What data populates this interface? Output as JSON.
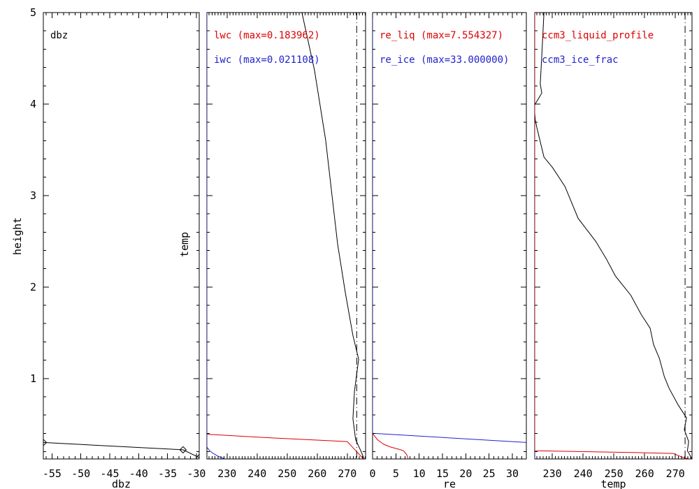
{
  "figure": {
    "background": "#ffffff"
  },
  "colors": {
    "black": "#000000",
    "red": "#dd0000",
    "blue": "#2222cc"
  },
  "chart_data": {
    "type": "line",
    "title": "",
    "grid": false,
    "y_axis": {
      "label": "height",
      "range": [
        0.12,
        5.0
      ],
      "major_ticks": [
        1,
        2,
        3,
        4,
        5
      ],
      "tick_labels": [
        "1",
        "2",
        "3",
        "4",
        "5"
      ],
      "minor_step": 0.2
    },
    "panels": [
      {
        "id": "dbz",
        "x_axis": {
          "label": "dbz",
          "range": [
            -56.5,
            -29.5
          ],
          "major_ticks": [
            -55,
            -50,
            -45,
            -40,
            -35,
            -30
          ],
          "tick_labels": [
            "-55",
            "-50",
            "-45",
            "-40",
            "-35",
            "-30"
          ],
          "minor_step": 1
        },
        "inner_labels": [
          {
            "text": "dbz",
            "color": "#000000"
          }
        ],
        "ref_lines": [],
        "series": [
          {
            "name": "dbz_profile",
            "color": "#000000",
            "marker": "diamond",
            "points": [
              [
                -56.5,
                0.3
              ],
              [
                -32.3,
                0.22
              ],
              [
                -29.5,
                0.135
              ]
            ]
          }
        ]
      },
      {
        "id": "lwc_iwc",
        "left_label": "temp",
        "x_axis": {
          "label": "",
          "range": [
            223.3,
            276.1
          ],
          "major_ticks": [
            230,
            240,
            250,
            260,
            270
          ],
          "tick_labels": [
            "230",
            "240",
            "250",
            "260",
            "270"
          ],
          "minor_step": 1
        },
        "inner_labels": [
          {
            "text": "lwc (max=0.183962)",
            "color": "#dd0000"
          },
          {
            "text": "iwc (max=0.021108)",
            "color": "#2222cc"
          }
        ],
        "ref_lines": [
          {
            "x": 273.15,
            "style": "dashdot",
            "color": "#000000"
          }
        ],
        "series": [
          {
            "name": "temp_profile",
            "color": "#000000",
            "points": [
              [
                254.9,
                5.0
              ],
              [
                259.1,
                4.37
              ],
              [
                262.8,
                3.61
              ],
              [
                266.8,
                2.47
              ],
              [
                269.4,
                1.93
              ],
              [
                271.9,
                1.47
              ],
              [
                273.8,
                1.21
              ],
              [
                272.4,
                0.86
              ],
              [
                271.9,
                0.56
              ],
              [
                272.8,
                0.33
              ],
              [
                274.5,
                0.21
              ],
              [
                275.6,
                0.12
              ]
            ]
          },
          {
            "name": "lwc",
            "color": "#dd0000",
            "points": [
              [
                223.3,
                0.39
              ],
              [
                245.0,
                0.35
              ],
              [
                270.0,
                0.31
              ],
              [
                275.4,
                0.12
              ]
            ]
          },
          {
            "name": "iwc",
            "color": "#2222cc",
            "points": [
              [
                223.3,
                5.0
              ],
              [
                223.3,
                0.25
              ],
              [
                224.2,
                0.21
              ],
              [
                225.4,
                0.18
              ],
              [
                227.0,
                0.15
              ],
              [
                229.3,
                0.12
              ]
            ]
          }
        ]
      },
      {
        "id": "re",
        "x_axis": {
          "label": "re",
          "range": [
            0,
            33
          ],
          "major_ticks": [
            0,
            5,
            10,
            15,
            20,
            25,
            30
          ],
          "tick_labels": [
            "0",
            "5",
            "10",
            "15",
            "20",
            "25",
            "30"
          ],
          "minor_step": 1
        },
        "inner_labels": [
          {
            "text": "re_liq (max=7.554327)",
            "color": "#dd0000"
          },
          {
            "text": "re_ice (max=33.000000)",
            "color": "#2222cc"
          }
        ],
        "ref_lines": [],
        "series": [
          {
            "name": "re_ice",
            "color": "#2222cc",
            "points": [
              [
                0,
                5.0
              ],
              [
                0,
                0.4
              ],
              [
                33,
                0.3
              ]
            ]
          },
          {
            "name": "re_liq",
            "color": "#dd0000",
            "points": [
              [
                0,
                0.4
              ],
              [
                1.05,
                0.33
              ],
              [
                2.4,
                0.28
              ],
              [
                3.9,
                0.25
              ],
              [
                5.4,
                0.23
              ],
              [
                6.6,
                0.21
              ],
              [
                7.3,
                0.17
              ],
              [
                7.65,
                0.12
              ]
            ]
          }
        ]
      },
      {
        "id": "ccm3",
        "x_axis": {
          "label": "temp",
          "range": [
            224.3,
            275.4
          ],
          "major_ticks": [
            230,
            240,
            250,
            260,
            270
          ],
          "tick_labels": [
            "230",
            "240",
            "250",
            "260",
            "270"
          ],
          "minor_step": 1
        },
        "inner_labels": [
          {
            "text": "ccm3_liquid_profile",
            "color": "#dd0000"
          },
          {
            "text": "ccm3_ice_frac",
            "color": "#2222cc"
          }
        ],
        "ref_lines": [
          {
            "x": 273.15,
            "style": "dashdot",
            "color": "#000000"
          }
        ],
        "series": [
          {
            "name": "temp_profile",
            "color": "#000000",
            "points": [
              [
                227.3,
                5.0
              ],
              [
                226.6,
                4.53
              ],
              [
                226.1,
                4.22
              ],
              [
                226.6,
                4.12
              ],
              [
                224.1,
                3.98
              ],
              [
                224.5,
                3.82
              ],
              [
                225.0,
                3.74
              ],
              [
                227.3,
                3.42
              ],
              [
                230.0,
                3.31
              ],
              [
                234.1,
                3.1
              ],
              [
                238.4,
                2.75
              ],
              [
                244.1,
                2.5
              ],
              [
                247.5,
                2.31
              ],
              [
                250.5,
                2.12
              ],
              [
                255.5,
                1.91
              ],
              [
                258.9,
                1.7
              ],
              [
                261.8,
                1.55
              ],
              [
                262.9,
                1.37
              ],
              [
                264.8,
                1.22
              ],
              [
                266.4,
                1.02
              ],
              [
                268.0,
                0.89
              ],
              [
                270.9,
                0.71
              ],
              [
                273.6,
                0.57
              ],
              [
                272.9,
                0.44
              ],
              [
                274.3,
                0.31
              ],
              [
                273.9,
                0.21
              ],
              [
                275.4,
                0.12
              ]
            ]
          },
          {
            "name": "ccm3_liquid_profile",
            "color": "#dd0000",
            "points": [
              [
                224.3,
                5.0
              ],
              [
                224.3,
                0.21
              ],
              [
                256.1,
                0.19
              ],
              [
                269.3,
                0.18
              ],
              [
                272.5,
                0.135
              ],
              [
                275.4,
                0.115
              ]
            ]
          },
          {
            "name": "ccm3_ice_frac",
            "color": "#2222cc",
            "points": [
              [
                224.3,
                0.21
              ],
              [
                224.3,
                0.12
              ]
            ]
          }
        ]
      }
    ]
  }
}
